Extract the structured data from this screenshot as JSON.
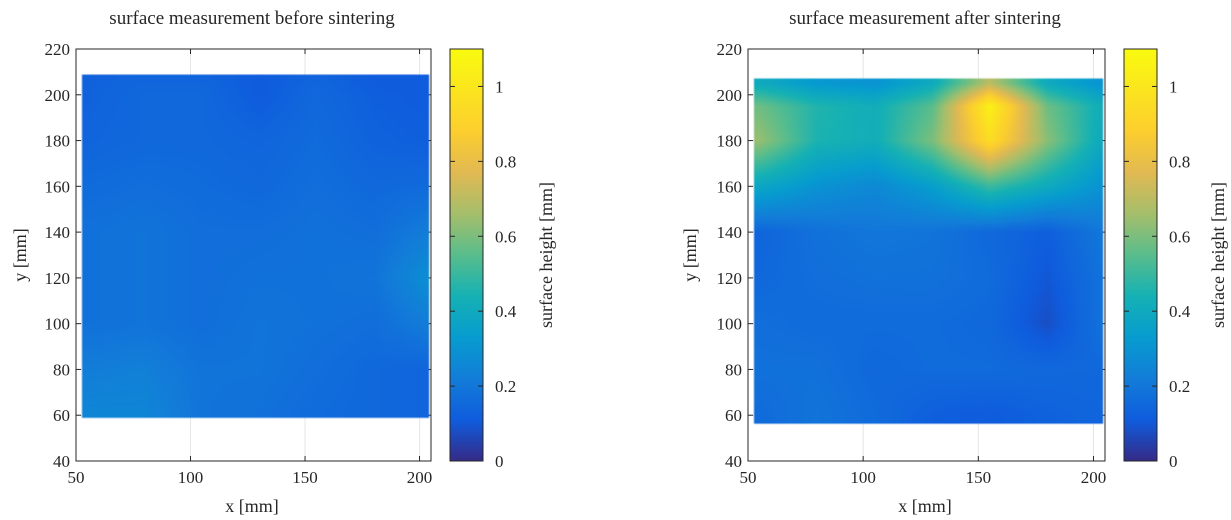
{
  "chart_data": [
    {
      "type": "heatmap",
      "title": "surface measurement before sintering",
      "xlabel": "x [mm]",
      "ylabel": "y [mm]",
      "xlim": [
        50,
        205
      ],
      "ylim": [
        40,
        220
      ],
      "xticks": [
        50,
        100,
        150,
        200
      ],
      "yticks": [
        40,
        60,
        80,
        100,
        120,
        140,
        160,
        180,
        200,
        220
      ],
      "grid": true,
      "colorbar": {
        "label": "surface height [mm]",
        "limits": [
          0,
          1.1
        ],
        "ticks": [
          0,
          0.2,
          0.4,
          0.6,
          0.8,
          1
        ]
      },
      "colormap": "parula",
      "surface_extent": {
        "x": [
          53,
          204
        ],
        "y": [
          59,
          209
        ]
      },
      "z_grid": {
        "x": [
          55,
          80,
          105,
          130,
          155,
          180,
          203
        ],
        "y": [
          62,
          80,
          100,
          120,
          140,
          160,
          180,
          200,
          207
        ],
        "z": [
          [
            0.25,
            0.25,
            0.19,
            0.18,
            0.16,
            0.15,
            0.14
          ],
          [
            0.22,
            0.23,
            0.19,
            0.19,
            0.17,
            0.15,
            0.14
          ],
          [
            0.18,
            0.19,
            0.17,
            0.19,
            0.18,
            0.17,
            0.22
          ],
          [
            0.18,
            0.19,
            0.17,
            0.18,
            0.18,
            0.19,
            0.28
          ],
          [
            0.18,
            0.19,
            0.17,
            0.17,
            0.18,
            0.17,
            0.22
          ],
          [
            0.16,
            0.17,
            0.16,
            0.15,
            0.17,
            0.15,
            0.16
          ],
          [
            0.14,
            0.15,
            0.15,
            0.14,
            0.16,
            0.13,
            0.12
          ],
          [
            0.13,
            0.15,
            0.15,
            0.11,
            0.15,
            0.12,
            0.11
          ],
          [
            0.13,
            0.14,
            0.14,
            0.11,
            0.14,
            0.11,
            0.11
          ]
        ]
      }
    },
    {
      "type": "heatmap",
      "title": "surface measurement after sintering",
      "xlabel": "x [mm]",
      "ylabel": "y [mm]",
      "xlim": [
        50,
        205
      ],
      "ylim": [
        40,
        220
      ],
      "xticks": [
        50,
        100,
        150,
        200
      ],
      "yticks": [
        40,
        60,
        80,
        100,
        120,
        140,
        160,
        180,
        200,
        220
      ],
      "grid": true,
      "colorbar": {
        "label": "surface height [mm]",
        "limits": [
          0,
          1.1
        ],
        "ticks": [
          0,
          0.2,
          0.4,
          0.6,
          0.8,
          1
        ]
      },
      "colormap": "parula",
      "surface_extent": {
        "x": [
          53,
          204
        ],
        "y": [
          56,
          207
        ]
      },
      "z_grid": {
        "x": [
          55,
          80,
          105,
          130,
          155,
          180,
          203
        ],
        "y": [
          60,
          80,
          100,
          120,
          140,
          160,
          180,
          195,
          205
        ],
        "z": [
          [
            0.16,
            0.19,
            0.16,
            0.12,
            0.11,
            0.13,
            0.14
          ],
          [
            0.18,
            0.18,
            0.15,
            0.16,
            0.16,
            0.15,
            0.15
          ],
          [
            0.17,
            0.16,
            0.16,
            0.16,
            0.15,
            0.08,
            0.18
          ],
          [
            0.15,
            0.17,
            0.18,
            0.18,
            0.16,
            0.1,
            0.18
          ],
          [
            0.14,
            0.18,
            0.2,
            0.19,
            0.15,
            0.12,
            0.2
          ],
          [
            0.38,
            0.3,
            0.26,
            0.34,
            0.5,
            0.4,
            0.3
          ],
          [
            0.64,
            0.45,
            0.42,
            0.6,
            0.95,
            0.62,
            0.4
          ],
          [
            0.58,
            0.46,
            0.42,
            0.55,
            1.05,
            0.58,
            0.42
          ],
          [
            0.4,
            0.32,
            0.3,
            0.4,
            0.7,
            0.4,
            0.3
          ]
        ]
      }
    }
  ]
}
